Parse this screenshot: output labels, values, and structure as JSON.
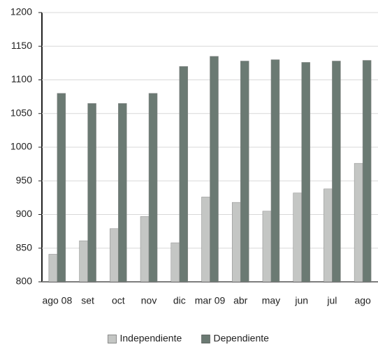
{
  "chart_data": {
    "type": "bar",
    "categories": [
      "ago 08",
      "set",
      "oct",
      "nov",
      "dic",
      "mar 09",
      "abr",
      "may",
      "jun",
      "jul",
      "ago"
    ],
    "series": [
      {
        "name": "Independiente",
        "color": "#c4c6c4",
        "values": [
          841,
          861,
          879,
          897,
          858,
          926,
          918,
          905,
          932,
          938,
          976
        ]
      },
      {
        "name": "Dependiente",
        "color": "#6b7a73",
        "values": [
          1080,
          1065,
          1065,
          1080,
          1120,
          1135,
          1128,
          1130,
          1126,
          1128,
          1129
        ]
      }
    ],
    "ylim": [
      800,
      1200
    ],
    "yticks": [
      800,
      850,
      900,
      950,
      1000,
      1050,
      1100,
      1150,
      1200
    ],
    "grid": true,
    "legend": "bottom"
  }
}
